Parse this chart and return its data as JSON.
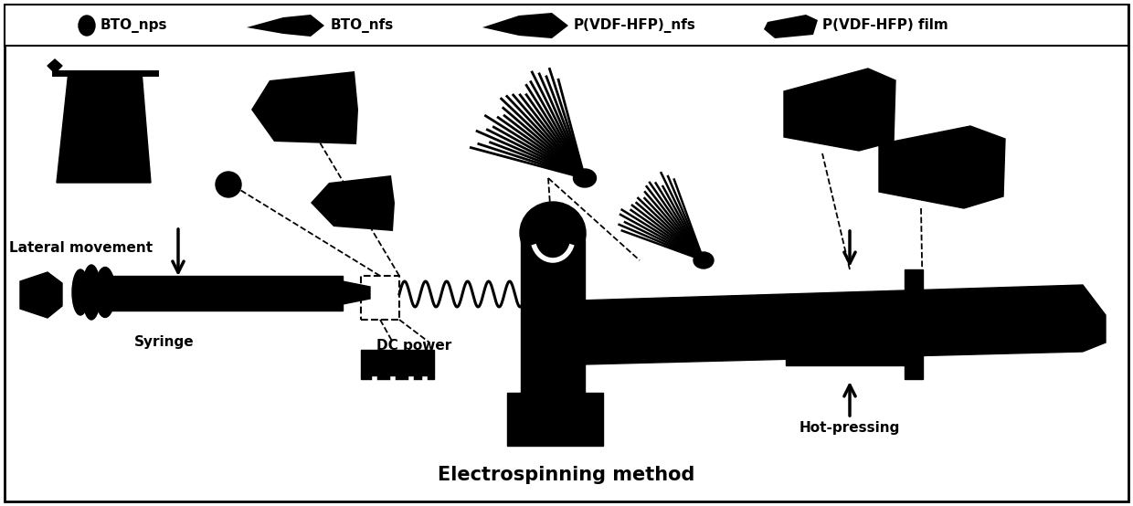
{
  "title": "Electrospinning method",
  "title_fontsize": 15,
  "title_fontweight": "bold",
  "legend_items": [
    "BTO_nps",
    "BTO_nfs",
    "P(VDF-HFP)_nfs",
    "P(VDF-HFP) film"
  ],
  "background_color": "#ffffff",
  "border_color": "#000000",
  "text_color": "#000000",
  "label_lateral": "Lateral movement",
  "label_syringe": "Syringe",
  "label_dc": "DC power",
  "label_hotpress": "Hot-pressing",
  "fig_width": 12.4,
  "fig_height": 5.54,
  "dpi": 100
}
